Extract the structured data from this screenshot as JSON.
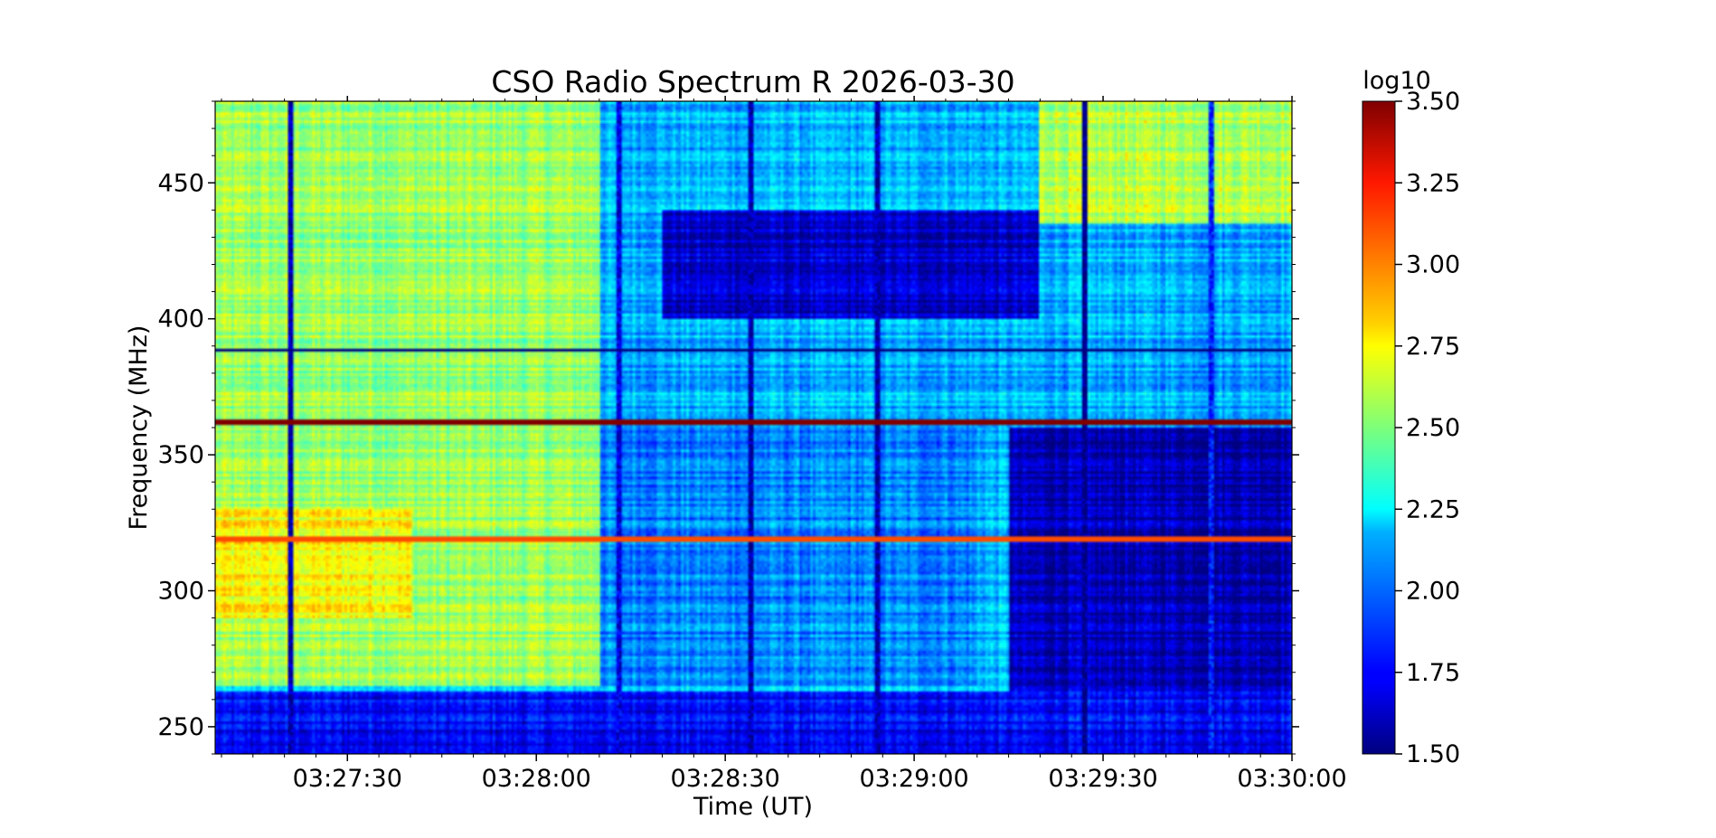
{
  "chart_data": {
    "type": "heatmap",
    "title": "CSO Radio Spectrum R 2026-03-30",
    "xlabel": "Time (UT)",
    "ylabel": "Frequency (MHz)",
    "x_ticks": [
      "03:27:30",
      "03:28:00",
      "03:28:30",
      "03:29:00",
      "03:29:30",
      "03:30:00"
    ],
    "x_range": [
      "03:27:09",
      "03:30:00"
    ],
    "y_ticks": [
      250,
      300,
      350,
      400,
      450
    ],
    "y_range": [
      240,
      480
    ],
    "colorbar": {
      "label": "log10",
      "ticks": [
        "3.50",
        "3.25",
        "3.00",
        "2.75",
        "2.50",
        "2.25",
        "2.00",
        "1.75",
        "1.50"
      ],
      "range": [
        1.5,
        3.5
      ],
      "colormap": "jet"
    },
    "features": {
      "persistent_bands_mhz": [
        {
          "freq": 362,
          "level": 3.5
        },
        {
          "freq": 388.5,
          "level": 1.5
        },
        {
          "freq": 319,
          "level": 3.1
        }
      ],
      "regions": [
        {
          "t_start": "03:27:09",
          "t_end": "03:28:10",
          "f_start": 265,
          "f_end": 480,
          "level": 2.55
        },
        {
          "t_start": "03:27:09",
          "t_end": "03:27:40",
          "f_start": 290,
          "f_end": 330,
          "level": 2.75
        },
        {
          "t_start": "03:28:10",
          "t_end": "03:29:10",
          "f_start": 265,
          "f_end": 360,
          "level": 2.0
        },
        {
          "t_start": "03:28:20",
          "t_end": "03:29:20",
          "f_start": 400,
          "f_end": 440,
          "level": 1.65
        },
        {
          "t_start": "03:29:15",
          "t_end": "03:30:00",
          "f_start": 245,
          "f_end": 360,
          "level": 1.6
        },
        {
          "t_start": "03:29:20",
          "t_end": "03:30:00",
          "f_start": 435,
          "f_end": 480,
          "level": 2.6
        }
      ],
      "vertical_features": [
        {
          "time": "03:27:21",
          "level": 1.6
        },
        {
          "time": "03:28:13",
          "level": 1.7
        },
        {
          "time": "03:28:34",
          "level": 1.6
        },
        {
          "time": "03:28:54",
          "level": 1.6
        },
        {
          "time": "03:29:27",
          "level": 1.5
        },
        {
          "time": "03:29:47",
          "level": 1.8
        }
      ]
    }
  }
}
